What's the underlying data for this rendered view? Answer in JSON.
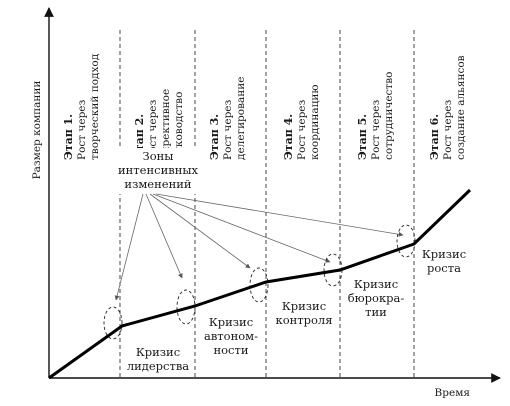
{
  "axes": {
    "y_label": "Размер компании",
    "x_label": "Время"
  },
  "zones_label": [
    "Зоны",
    "интенсивных",
    "изменений"
  ],
  "stages": [
    {
      "title": "Этап 1.",
      "lines": [
        "Рост через",
        "творческий подход"
      ]
    },
    {
      "title": "Этап 2.",
      "lines": [
        "Рост через",
        "директивное",
        "руководство"
      ]
    },
    {
      "title": "Этап 3.",
      "lines": [
        "Рост через",
        "делегирование"
      ]
    },
    {
      "title": "Этап 4.",
      "lines": [
        "Рост через",
        "координацию"
      ]
    },
    {
      "title": "Этап 5.",
      "lines": [
        "Рост через",
        "сотрудничество"
      ]
    },
    {
      "title": "Этап 6.",
      "lines": [
        "Рост через",
        "создание альянсов"
      ]
    }
  ],
  "crises": [
    {
      "lines": [
        "Кризис",
        "лидерства"
      ]
    },
    {
      "lines": [
        "Кризис",
        "автоном-",
        "ности"
      ]
    },
    {
      "lines": [
        "Кризис",
        "контроля"
      ]
    },
    {
      "lines": [
        "Кризис",
        "бюрокра-",
        "тии"
      ]
    },
    {
      "lines": [
        "Кризис",
        "роста"
      ]
    }
  ]
}
